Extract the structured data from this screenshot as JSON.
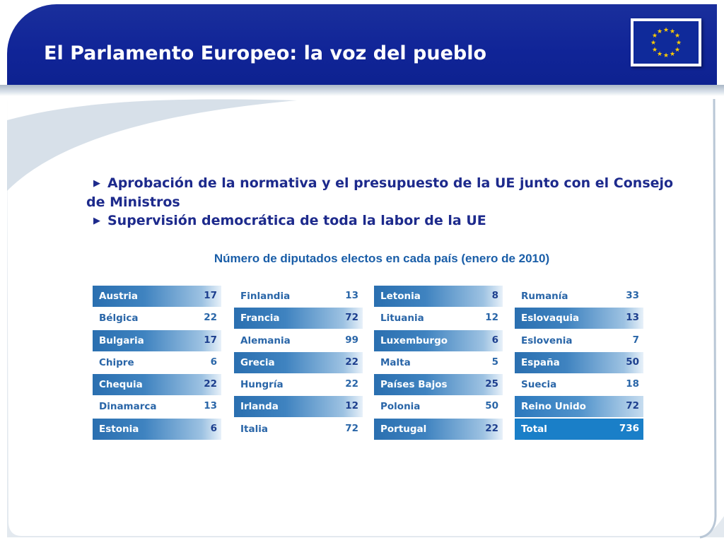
{
  "header": {
    "title": "El Parlamento Europeo: la voz del pueblo",
    "flag_icon": "eu-flag-icon"
  },
  "bullets": [
    "Aprobación de la normativa y el presupuesto de la UE junto con el Consejo de Ministros",
    "Supervisión democrática de toda la labor de la UE"
  ],
  "chart_data": {
    "type": "table",
    "title": "Número de diputados electos en cada país (enero de 2010)",
    "columns": [
      [
        {
          "country": "Austria",
          "seats": "17"
        },
        {
          "country": "Bélgica",
          "seats": "22"
        },
        {
          "country": "Bulgaria",
          "seats": "17"
        },
        {
          "country": "Chipre",
          "seats": "6"
        },
        {
          "country": "Chequia",
          "seats": "22"
        },
        {
          "country": "Dinamarca",
          "seats": "13"
        },
        {
          "country": "Estonia",
          "seats": "6"
        }
      ],
      [
        {
          "country": "Finlandia",
          "seats": "13"
        },
        {
          "country": "Francia",
          "seats": "72"
        },
        {
          "country": "Alemania",
          "seats": "99"
        },
        {
          "country": "Grecia",
          "seats": "22"
        },
        {
          "country": "Hungría",
          "seats": "22"
        },
        {
          "country": "Irlanda",
          "seats": "12"
        },
        {
          "country": "Italia",
          "seats": "72"
        }
      ],
      [
        {
          "country": "Letonia",
          "seats": "8"
        },
        {
          "country": "Lituania",
          "seats": "12"
        },
        {
          "country": "Luxemburgo",
          "seats": "6"
        },
        {
          "country": "Malta",
          "seats": "5"
        },
        {
          "country": "Países Bajos",
          "seats": "25"
        },
        {
          "country": "Polonia",
          "seats": "50"
        },
        {
          "country": "Portugal",
          "seats": "22"
        }
      ],
      [
        {
          "country": "Rumanía",
          "seats": "33"
        },
        {
          "country": "Eslovaquia",
          "seats": "13"
        },
        {
          "country": "Eslovenia",
          "seats": "7"
        },
        {
          "country": "España",
          "seats": "50"
        },
        {
          "country": "Suecia",
          "seats": "18"
        },
        {
          "country": "Reino Unido",
          "seats": "72"
        },
        {
          "country": "Total",
          "seats": "736"
        }
      ]
    ]
  },
  "colors": {
    "header_blue": "#102497",
    "row_blue": "#2a6fb0",
    "text_blue": "#2a66a8",
    "total_blue": "#1a7fc8",
    "chart_title": "#1a5ea8"
  }
}
